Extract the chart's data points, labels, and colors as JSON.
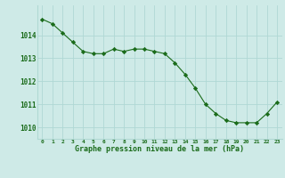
{
  "hours": [
    0,
    1,
    2,
    3,
    4,
    5,
    6,
    7,
    8,
    9,
    10,
    11,
    12,
    13,
    14,
    15,
    16,
    17,
    18,
    19,
    20,
    21,
    22,
    23
  ],
  "pressure": [
    1014.7,
    1014.5,
    1014.1,
    1013.7,
    1013.3,
    1013.2,
    1013.2,
    1013.4,
    1013.3,
    1013.4,
    1013.4,
    1013.3,
    1013.2,
    1012.8,
    1012.3,
    1011.7,
    1011.0,
    1010.6,
    1010.3,
    1010.2,
    1010.2,
    1010.2,
    1010.6,
    1011.1
  ],
  "line_color": "#1a6b1a",
  "marker_color": "#1a6b1a",
  "bg_color": "#ceeae7",
  "grid_color": "#b0d8d4",
  "xlabel": "Graphe pression niveau de la mer (hPa)",
  "xlabel_color": "#1a6b1a",
  "tick_color": "#1a6b1a",
  "ylim": [
    1009.5,
    1015.3
  ],
  "yticks": [
    1010,
    1011,
    1012,
    1013,
    1014
  ],
  "xlim": [
    -0.5,
    23.5
  ],
  "xticks": [
    0,
    1,
    2,
    3,
    4,
    5,
    6,
    7,
    8,
    9,
    10,
    11,
    12,
    13,
    14,
    15,
    16,
    17,
    18,
    19,
    20,
    21,
    22,
    23
  ]
}
